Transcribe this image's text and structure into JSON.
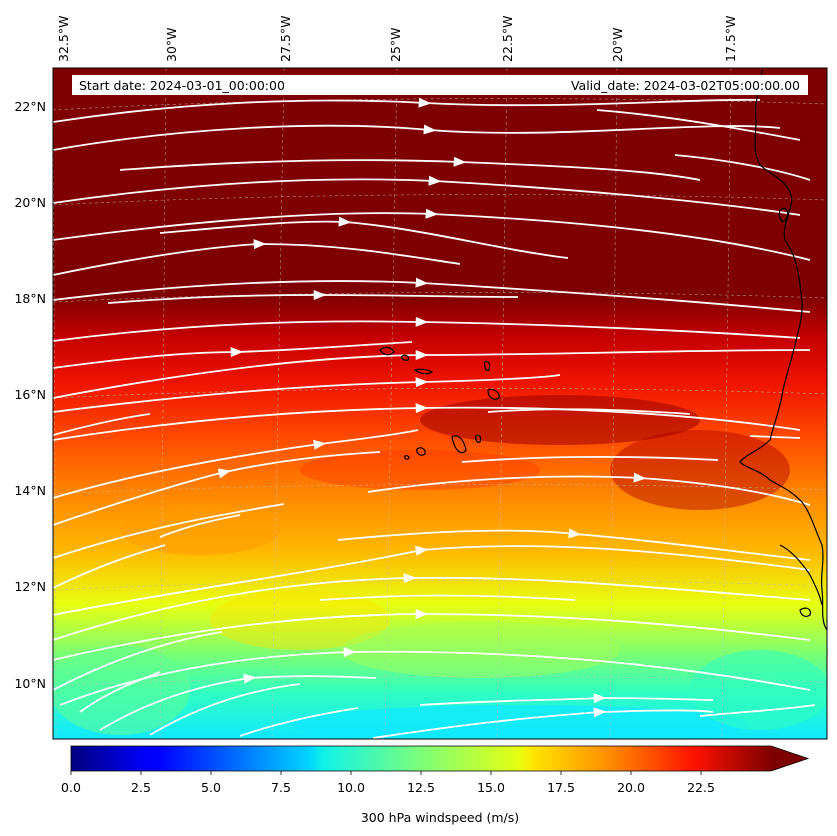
{
  "header": {
    "start_date": "Start date: 2024-03-01_00:00:00",
    "valid_date": "Valid_date: 2024-03-02T05:00:00.00"
  },
  "longitude_ticks": [
    "32.5°W",
    "30°W",
    "27.5°W",
    "25°W",
    "22.5°W",
    "20°W",
    "17.5°W"
  ],
  "latitude_ticks": [
    "22°N",
    "20°N",
    "18°N",
    "16°N",
    "14°N",
    "12°N",
    "10°N"
  ],
  "colorbar": {
    "label": "300 hPa windspeed (m/s)",
    "ticks": [
      "0.0",
      "2.5",
      "5.0",
      "7.5",
      "10.0",
      "12.5",
      "15.0",
      "17.5",
      "20.0",
      "22.5"
    ],
    "min": 0,
    "max": 25,
    "extend": "max",
    "colormap": "jet"
  },
  "map": {
    "type": "filled contour + streamlines",
    "field": "300 hPa windspeed",
    "lon_range": [
      -32.7,
      -15.2
    ],
    "lat_range": [
      8.8,
      22.8
    ],
    "streamline_color": "#ffffff",
    "coastline_color": "#000000"
  }
}
